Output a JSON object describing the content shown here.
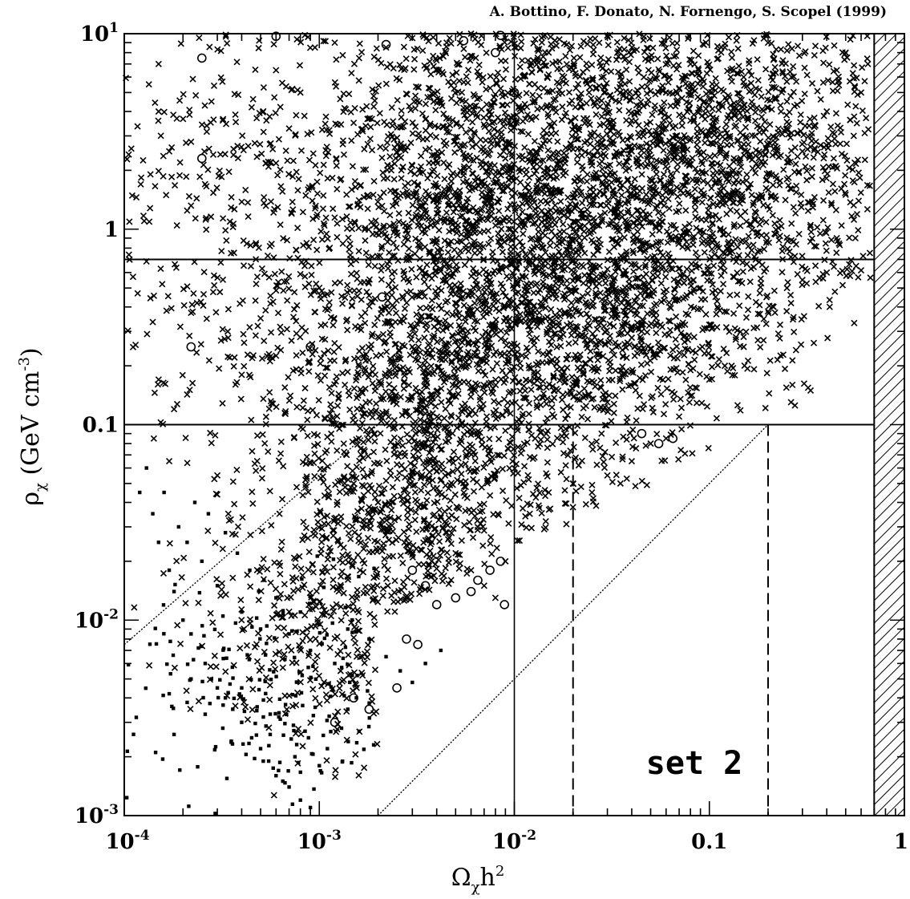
{
  "chart_data": {
    "type": "scatter",
    "credit": "A. Bottino, F. Donato, N. Fornengo, S. Scopel (1999)",
    "annotation": "set 2",
    "xaxis": {
      "label_main": "Ω",
      "label_sub": "χ",
      "label_tail": "h",
      "label_sup": "2",
      "scale": "log",
      "range": [
        0.0001,
        1
      ],
      "ticks": [
        {
          "value": 0.0001,
          "base": "10",
          "exp": "-4"
        },
        {
          "value": 0.001,
          "base": "10",
          "exp": "-3"
        },
        {
          "value": 0.01,
          "base": "10",
          "exp": "-2"
        },
        {
          "value": 0.1,
          "base": "0.1",
          "exp": ""
        },
        {
          "value": 1,
          "base": "1",
          "exp": ""
        }
      ]
    },
    "yaxis": {
      "label_main": "ρ",
      "label_sub": "χ",
      "label_tail": " (GeV cm",
      "label_sup": "-3",
      "label_end": ")",
      "scale": "log",
      "range": [
        0.001,
        10
      ],
      "ticks": [
        {
          "value": 10,
          "base": "10",
          "exp": "1"
        },
        {
          "value": 1,
          "base": "1",
          "exp": ""
        },
        {
          "value": 0.1,
          "base": "0.1",
          "exp": ""
        },
        {
          "value": 0.01,
          "base": "10",
          "exp": "-2"
        },
        {
          "value": 0.001,
          "base": "10",
          "exp": "-3"
        }
      ]
    },
    "reference_lines": {
      "horizontal_solid": [
        0.7,
        0.1
      ],
      "vertical_solid": [
        0.01
      ],
      "vertical_dashed": [
        0.02,
        0.2
      ],
      "diagonal_dotted": [
        {
          "from": [
            0.0001,
            0.0075
          ],
          "to": [
            0.002,
            0.1
          ]
        },
        {
          "from": [
            0.002,
            0.001
          ],
          "to": [
            0.2,
            0.1
          ]
        }
      ],
      "excluded_band": {
        "from": 0.7,
        "to": 1,
        "style": "hatched"
      }
    },
    "series": [
      {
        "marker": "x",
        "points": [
          [
            0.00015,
            7
          ],
          [
            0.00015,
            4
          ],
          [
            0.00017,
            2.5
          ],
          [
            0.00022,
            2.8
          ],
          [
            0.00028,
            4.5
          ],
          [
            0.00032,
            3.6
          ],
          [
            0.00045,
            4.2
          ],
          [
            0.0006,
            6.5
          ],
          [
            0.0008,
            5
          ],
          [
            0.00095,
            8.5
          ],
          [
            0.0012,
            9
          ],
          [
            0.0015,
            3.5
          ],
          [
            0.0016,
            7.5
          ],
          [
            0.0019,
            4.8
          ],
          [
            0.0022,
            8.5
          ],
          [
            0.003,
            9.5
          ],
          [
            0.0045,
            9
          ],
          [
            0.006,
            10
          ],
          [
            0.009,
            9.5
          ],
          [
            0.015,
            8
          ],
          [
            0.00015,
            0.17
          ],
          [
            0.00018,
            0.12
          ],
          [
            0.00017,
            0.065
          ],
          [
            0.0003,
            0.055
          ],
          [
            0.0005,
            0.35
          ],
          [
            0.0004,
            0.18
          ],
          [
            0.003,
            0.25
          ],
          [
            0.0035,
            0.06
          ],
          [
            0.004,
            0.45
          ],
          [
            0.0045,
            0.028
          ],
          [
            0.005,
            0.022
          ],
          [
            0.006,
            0.018
          ],
          [
            0.007,
            0.015
          ],
          [
            0.008,
            0.013
          ],
          [
            0.009,
            0.02
          ],
          [
            0.0015,
            0.05
          ],
          [
            0.002,
            0.04
          ],
          [
            0.012,
            0.035
          ],
          [
            0.015,
            0.045
          ],
          [
            0.0145,
            0.032
          ],
          [
            0.02,
            0.05
          ],
          [
            0.025,
            0.045
          ],
          [
            0.03,
            0.055
          ],
          [
            0.035,
            0.05
          ],
          [
            0.04,
            0.065
          ],
          [
            0.05,
            0.08
          ],
          [
            0.06,
            0.085
          ],
          [
            0.07,
            0.11
          ],
          [
            0.08,
            0.14
          ],
          [
            0.1,
            0.17
          ],
          [
            0.12,
            0.2
          ],
          [
            0.15,
            0.25
          ],
          [
            0.2,
            0.38
          ],
          [
            0.25,
            0.5
          ],
          [
            0.3,
            0.55
          ],
          [
            0.35,
            0.65
          ],
          [
            0.4,
            0.6
          ],
          [
            0.45,
            0.9
          ],
          [
            0.5,
            1.5
          ],
          [
            0.55,
            3
          ],
          [
            0.6,
            5
          ],
          [
            0.65,
            7
          ],
          [
            0.5,
            8
          ],
          [
            0.45,
            6.5
          ],
          [
            0.4,
            4
          ],
          [
            0.3,
            2.5
          ],
          [
            0.25,
            1.8
          ],
          [
            0.13,
            0.2
          ],
          [
            0.045,
            0.3
          ],
          [
            0.028,
            0.09
          ],
          [
            0.03,
            0.13
          ],
          [
            0.011,
            0.11
          ],
          [
            0.022,
            1.2
          ],
          [
            0.04,
            2.5
          ],
          [
            0.06,
            5
          ],
          [
            0.08,
            7
          ],
          [
            0.1,
            3
          ],
          [
            0.12,
            8.5
          ],
          [
            0.15,
            6
          ],
          [
            0.2,
            9
          ],
          [
            0.25,
            4.5
          ],
          [
            0.018,
            6
          ],
          [
            0.016,
            3.5
          ],
          [
            0.02,
            1.5
          ],
          [
            0.025,
            2.2
          ],
          [
            0.035,
            0.7
          ],
          [
            0.05,
            1.4
          ],
          [
            0.07,
            0.9
          ],
          [
            0.09,
            0.5
          ],
          [
            0.11,
            0.4
          ],
          [
            0.009,
            0.35
          ],
          [
            0.0075,
            0.55
          ],
          [
            0.0065,
            1.8
          ],
          [
            0.0055,
            4
          ],
          [
            0.0095,
            2.7
          ],
          [
            0.012,
            1.3
          ],
          [
            0.014,
            0.6
          ]
        ]
      },
      {
        "marker": "circle",
        "points": [
          [
            0.00025,
            7.5
          ],
          [
            0.0006,
            9.7
          ],
          [
            0.0022,
            8.8
          ],
          [
            0.0055,
            9.2
          ],
          [
            0.008,
            8
          ],
          [
            0.0085,
            9.8
          ],
          [
            0.01,
            5
          ],
          [
            0.0098,
            3.5
          ],
          [
            0.0021,
            0.45
          ],
          [
            0.0025,
            0.22
          ],
          [
            0.0009,
            0.25
          ],
          [
            0.00022,
            0.25
          ],
          [
            0.00025,
            2.3
          ],
          [
            0.003,
            0.018
          ],
          [
            0.0035,
            0.015
          ],
          [
            0.004,
            0.012
          ],
          [
            0.005,
            0.013
          ],
          [
            0.006,
            0.014
          ],
          [
            0.0065,
            0.016
          ],
          [
            0.0075,
            0.018
          ],
          [
            0.0085,
            0.02
          ],
          [
            0.0089,
            0.012
          ],
          [
            0.0018,
            0.0035
          ],
          [
            0.0015,
            0.004
          ],
          [
            0.0012,
            0.003
          ],
          [
            0.0025,
            0.0045
          ],
          [
            0.045,
            0.09
          ],
          [
            0.055,
            0.08
          ],
          [
            0.065,
            0.085
          ],
          [
            0.0028,
            0.008
          ],
          [
            0.0032,
            0.0075
          ]
        ]
      },
      {
        "marker": "dot",
        "points": [
          [
            0.00012,
            0.045
          ],
          [
            0.00013,
            0.06
          ],
          [
            0.00014,
            0.035
          ],
          [
            0.00015,
            0.025
          ],
          [
            0.00016,
            0.045
          ],
          [
            0.00017,
            0.018
          ],
          [
            0.00018,
            0.014
          ],
          [
            0.0002,
            0.01
          ],
          [
            0.00022,
            0.0085
          ],
          [
            0.00024,
            0.0072
          ],
          [
            0.00026,
            0.006
          ],
          [
            0.00028,
            0.005
          ],
          [
            0.0003,
            0.0045
          ],
          [
            0.00033,
            0.004
          ],
          [
            0.00036,
            0.0035
          ],
          [
            0.0004,
            0.003
          ],
          [
            0.00045,
            0.0025
          ],
          [
            0.0005,
            0.0022
          ],
          [
            0.00055,
            0.0019
          ],
          [
            0.0006,
            0.0016
          ],
          [
            0.00065,
            0.0015
          ],
          [
            0.0007,
            0.0014
          ],
          [
            0.0008,
            0.0012
          ],
          [
            0.0009,
            0.0011
          ],
          [
            0.00017,
            0.0042
          ],
          [
            0.00018,
            0.0026
          ],
          [
            0.00022,
            0.005
          ],
          [
            0.00026,
            0.0033
          ],
          [
            0.00032,
            0.0028
          ],
          [
            0.0004,
            0.0045
          ],
          [
            0.00048,
            0.0036
          ],
          [
            0.00056,
            0.0026
          ],
          [
            0.00062,
            0.0032
          ],
          [
            0.00075,
            0.002
          ],
          [
            0.00088,
            0.0025
          ],
          [
            0.001,
            0.0018
          ],
          [
            0.0011,
            0.0022
          ],
          [
            0.0013,
            0.0028
          ],
          [
            0.0014,
            0.0035
          ],
          [
            0.0016,
            0.0027
          ],
          [
            0.0019,
            0.0023
          ],
          [
            0.0012,
            0.006
          ],
          [
            0.0009,
            0.007
          ],
          [
            0.0007,
            0.0085
          ],
          [
            0.0005,
            0.009
          ],
          [
            0.0004,
            0.011
          ],
          [
            0.0003,
            0.015
          ],
          [
            0.00025,
            0.02
          ],
          [
            0.00021,
            0.025
          ],
          [
            0.00019,
            0.03
          ],
          [
            0.00023,
            0.04
          ],
          [
            0.00027,
            0.035
          ],
          [
            0.00033,
            0.028
          ],
          [
            0.00038,
            0.022
          ],
          [
            0.00044,
            0.018
          ],
          [
            0.00052,
            0.016
          ],
          [
            0.0006,
            0.013
          ],
          [
            0.0008,
            0.011
          ],
          [
            0.001,
            0.0095
          ],
          [
            0.0014,
            0.009
          ],
          [
            0.0018,
            0.008
          ],
          [
            0.0022,
            0.0065
          ],
          [
            0.0026,
            0.0055
          ],
          [
            0.003,
            0.0048
          ],
          [
            0.0035,
            0.006
          ],
          [
            0.0042,
            0.007
          ]
        ]
      }
    ],
    "density_clusters": [
      {
        "cx": 0.0045,
        "cy": 0.25,
        "sx": 0.45,
        "sy": 0.75,
        "count": 1400,
        "marker": "x"
      },
      {
        "cx": 0.03,
        "cy": 1.3,
        "sx": 0.6,
        "sy": 0.55,
        "count": 1900,
        "marker": "x"
      },
      {
        "cx": 0.12,
        "cy": 3.0,
        "sx": 0.5,
        "sy": 0.4,
        "count": 1100,
        "marker": "x"
      },
      {
        "cx": 0.007,
        "cy": 3.5,
        "sx": 0.3,
        "sy": 0.5,
        "count": 500,
        "marker": "x"
      },
      {
        "cx": 0.0025,
        "cy": 0.05,
        "sx": 0.35,
        "sy": 0.4,
        "count": 650,
        "marker": "x"
      },
      {
        "cx": 0.0008,
        "cy": 0.8,
        "sx": 0.5,
        "sy": 0.6,
        "count": 350,
        "marker": "x"
      },
      {
        "cx": 0.00035,
        "cy": 2.0,
        "sx": 0.45,
        "sy": 0.6,
        "count": 220,
        "marker": "x"
      },
      {
        "cx": 0.0012,
        "cy": 0.01,
        "sx": 0.35,
        "sy": 0.35,
        "count": 380,
        "marker": "x"
      },
      {
        "cx": 0.0006,
        "cy": 0.004,
        "sx": 0.35,
        "sy": 0.3,
        "count": 200,
        "marker": "dot"
      },
      {
        "cx": 0.02,
        "cy": 0.3,
        "sx": 0.4,
        "sy": 0.35,
        "count": 700,
        "marker": "x"
      }
    ]
  }
}
